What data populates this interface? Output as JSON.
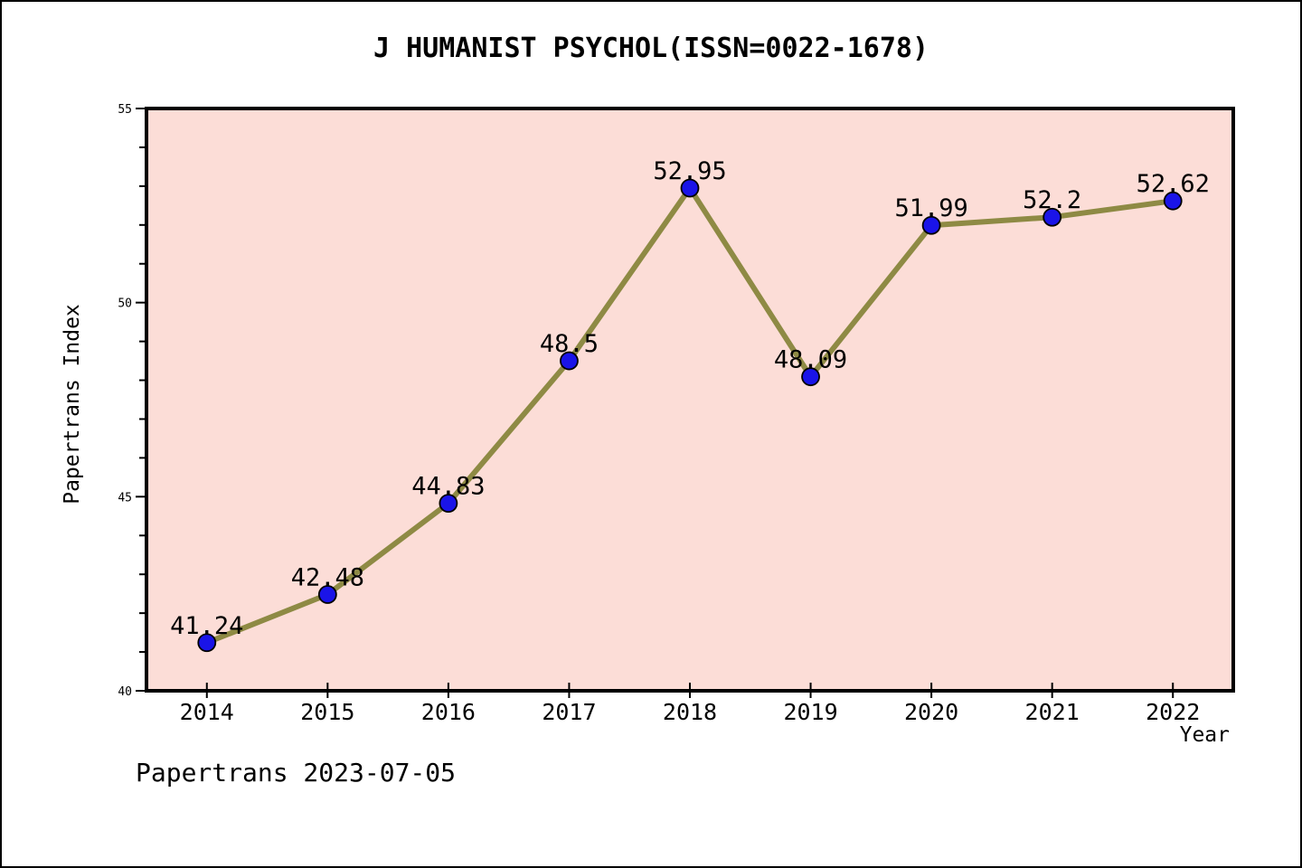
{
  "footer": {
    "text": "Papertrans 2023-07-05"
  },
  "chart_data": {
    "type": "line",
    "title": "J HUMANIST PSYCHOL(ISSN=0022-1678)",
    "xlabel": "Year",
    "ylabel": "Papertrans Index",
    "categories": [
      "2014",
      "2015",
      "2016",
      "2017",
      "2018",
      "2019",
      "2020",
      "2021",
      "2022"
    ],
    "series": [
      {
        "name": "Papertrans Index",
        "values": [
          41.24,
          42.48,
          44.83,
          48.5,
          52.95,
          48.09,
          51.99,
          52.2,
          52.62
        ],
        "point_labels": [
          "41.24",
          "42.48",
          "44.83",
          "48.5",
          "52.95",
          "48.09",
          "51.99",
          "52.2",
          "52.62"
        ]
      }
    ],
    "ylim": [
      40,
      55
    ],
    "ytick_major_step": 5,
    "ytick_minor_step": 1,
    "ytick_labels": [
      "40",
      "45",
      "50",
      "55"
    ],
    "grid": false,
    "legend_position": "none",
    "colors": {
      "line": "#8E8A44",
      "marker_fill": "#1A14E8",
      "marker_edge": "#000000",
      "plot_background": "#FCDDD7",
      "text": "#000000",
      "spine": "#000000"
    }
  }
}
